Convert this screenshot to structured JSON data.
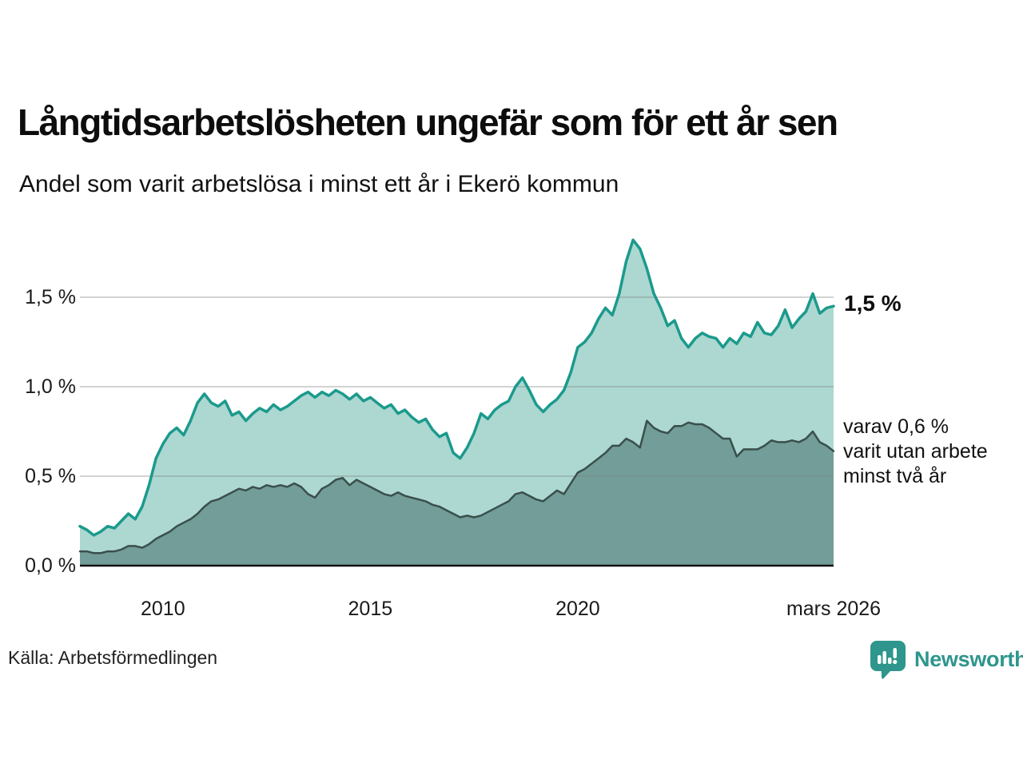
{
  "header": {
    "title": "Långtidsarbetslösheten ungefär som för ett år sen",
    "subtitle": "Andel som varit arbetslösa i minst ett år i Ekerö kommun"
  },
  "chart_data": {
    "type": "area",
    "title": "Långtidsarbetslösheten ungefär som för ett år sen",
    "subtitle": "Andel som varit arbetslösa i minst ett år i Ekerö kommun",
    "unit": "%",
    "x_start": 2008.0,
    "points_per_year": 6,
    "y_max": 1.9,
    "grid": "horizontal",
    "x_ticks": [
      {
        "year": 2010,
        "label": "2010"
      },
      {
        "year": 2015,
        "label": "2015"
      },
      {
        "year": 2020,
        "label": "2020"
      },
      {
        "year": 2026.1667,
        "label": "mars 2026"
      }
    ],
    "y_ticks": [
      {
        "value": 0.0,
        "label": "0,0 %"
      },
      {
        "value": 0.5,
        "label": "0,5 %"
      },
      {
        "value": 1.0,
        "label": "1,0 %"
      },
      {
        "value": 1.5,
        "label": "1,5 %"
      }
    ],
    "series": [
      {
        "name": "Andel som varit arbetslösa i minst ett år",
        "line_color": "#1b9a8c",
        "fill_color": "#acd8d1",
        "line_width": 3.5,
        "values": [
          0.22,
          0.2,
          0.17,
          0.19,
          0.22,
          0.21,
          0.25,
          0.29,
          0.26,
          0.33,
          0.45,
          0.6,
          0.68,
          0.74,
          0.77,
          0.73,
          0.81,
          0.91,
          0.96,
          0.91,
          0.89,
          0.92,
          0.84,
          0.86,
          0.81,
          0.85,
          0.88,
          0.86,
          0.9,
          0.87,
          0.89,
          0.92,
          0.95,
          0.97,
          0.94,
          0.97,
          0.95,
          0.98,
          0.96,
          0.93,
          0.96,
          0.92,
          0.94,
          0.91,
          0.88,
          0.9,
          0.85,
          0.87,
          0.83,
          0.8,
          0.82,
          0.76,
          0.72,
          0.74,
          0.63,
          0.6,
          0.66,
          0.74,
          0.85,
          0.82,
          0.87,
          0.9,
          0.92,
          1.0,
          1.05,
          0.98,
          0.9,
          0.86,
          0.9,
          0.93,
          0.98,
          1.08,
          1.22,
          1.25,
          1.3,
          1.38,
          1.44,
          1.4,
          1.52,
          1.7,
          1.82,
          1.77,
          1.66,
          1.52,
          1.44,
          1.34,
          1.37,
          1.27,
          1.22,
          1.27,
          1.3,
          1.28,
          1.27,
          1.22,
          1.27,
          1.24,
          1.3,
          1.28,
          1.36,
          1.3,
          1.29,
          1.34,
          1.43,
          1.33,
          1.38,
          1.42,
          1.52,
          1.41,
          1.44,
          1.45
        ]
      },
      {
        "name": "varav arbetslösa minst två år",
        "line_color": "#3a4f4c",
        "fill_color": "#729d98",
        "line_width": 2.5,
        "values": [
          0.08,
          0.08,
          0.07,
          0.07,
          0.08,
          0.08,
          0.09,
          0.11,
          0.11,
          0.1,
          0.12,
          0.15,
          0.17,
          0.19,
          0.22,
          0.24,
          0.26,
          0.29,
          0.33,
          0.36,
          0.37,
          0.39,
          0.41,
          0.43,
          0.42,
          0.44,
          0.43,
          0.45,
          0.44,
          0.45,
          0.44,
          0.46,
          0.44,
          0.4,
          0.38,
          0.43,
          0.45,
          0.48,
          0.49,
          0.45,
          0.48,
          0.46,
          0.44,
          0.42,
          0.4,
          0.39,
          0.41,
          0.39,
          0.38,
          0.37,
          0.36,
          0.34,
          0.33,
          0.31,
          0.29,
          0.27,
          0.28,
          0.27,
          0.28,
          0.3,
          0.32,
          0.34,
          0.36,
          0.4,
          0.41,
          0.39,
          0.37,
          0.36,
          0.39,
          0.42,
          0.4,
          0.46,
          0.52,
          0.54,
          0.57,
          0.6,
          0.63,
          0.67,
          0.67,
          0.71,
          0.69,
          0.66,
          0.81,
          0.77,
          0.75,
          0.74,
          0.78,
          0.78,
          0.8,
          0.79,
          0.79,
          0.77,
          0.74,
          0.71,
          0.71,
          0.61,
          0.65,
          0.65,
          0.65,
          0.67,
          0.7,
          0.69,
          0.69,
          0.7,
          0.69,
          0.71,
          0.75,
          0.69,
          0.67,
          0.64
        ]
      }
    ],
    "annotations": {
      "end_value_label": "1,5 %",
      "series2_line1": "varav 0,6 %",
      "series2_line2": "varit utan arbete",
      "series2_line3": "minst två år"
    },
    "legend_position": "right-annotations"
  },
  "footer": {
    "source": "Källa: Arbetsförmedlingen",
    "brand": "Newsworthy"
  },
  "colors": {
    "accent_teal": "#1b9a8c",
    "light_fill": "#acd8d1",
    "dark_fill": "#729d98",
    "dark_line": "#3a4f4c",
    "grid": "rgba(130,130,130,0.35)",
    "axis": "#111111",
    "brand_teal": "#2e968c"
  }
}
